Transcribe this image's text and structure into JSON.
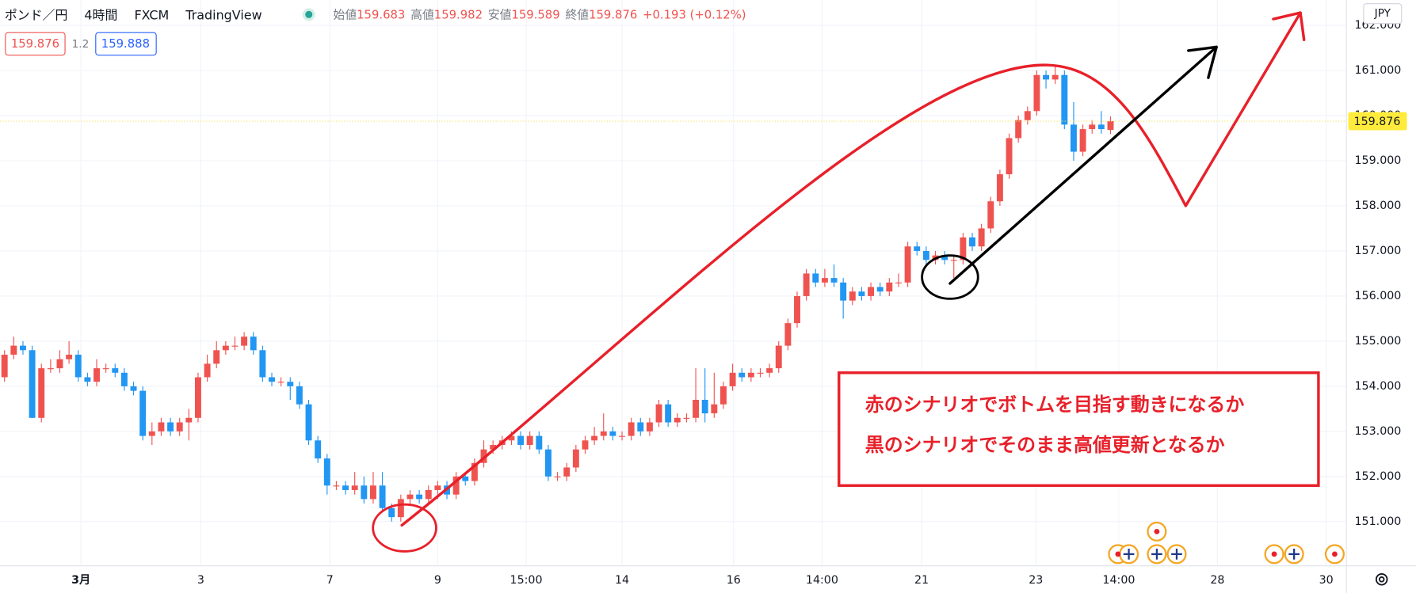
{
  "header": {
    "symbol": "ポンド／円",
    "interval": "4時間",
    "source": "FXCM",
    "platform": "TradingView",
    "ohlc": [
      {
        "label": "始値",
        "value": "159.683"
      },
      {
        "label": "高値",
        "value": "159.982"
      },
      {
        "label": "安値",
        "value": "159.589"
      },
      {
        "label": "終値",
        "value": "159.876"
      }
    ],
    "change": "+0.193 (+0.12%)",
    "bid": "159.876",
    "spread": "1.2",
    "ask": "159.888"
  },
  "chart_data": {
    "type": "candlestick",
    "up_color": "#ef5350",
    "down_color": "#2196f3",
    "open": [
      154.2,
      154.7,
      154.9,
      154.8,
      153.3,
      154.4,
      154.4,
      154.6,
      154.7,
      154.2,
      154.1,
      154.4,
      154.4,
      154.3,
      154.0,
      153.9,
      152.9,
      153.0,
      153.2,
      153.0,
      153.2,
      153.3,
      154.2,
      154.5,
      154.8,
      154.9,
      154.9,
      155.1,
      154.8,
      154.2,
      154.1,
      154.1,
      154.0,
      153.6,
      152.8,
      152.4,
      151.8,
      151.8,
      151.7,
      151.8,
      151.5,
      151.8,
      151.3,
      151.1,
      151.5,
      151.6,
      151.5,
      151.7,
      151.8,
      151.6,
      152.0,
      151.9,
      152.3,
      152.6,
      152.7,
      152.8,
      152.9,
      152.7,
      152.9,
      152.6,
      152.0,
      152.0,
      152.2,
      152.6,
      152.8,
      152.9,
      153.0,
      152.9,
      152.9,
      153.2,
      153.0,
      153.2,
      153.6,
      153.2,
      153.3,
      153.3,
      153.7,
      153.4,
      153.6,
      154.0,
      154.3,
      154.2,
      154.3,
      154.3,
      154.4,
      154.9,
      155.4,
      156.0,
      156.5,
      156.3,
      156.4,
      156.3,
      155.9,
      156.1,
      156.0,
      156.2,
      156.1,
      156.3,
      156.3,
      157.1,
      157.0,
      156.8,
      156.9,
      156.8,
      156.8,
      157.3,
      157.1,
      157.5,
      158.1,
      158.7,
      159.5,
      159.9,
      160.1,
      160.9,
      160.8,
      160.9,
      159.8,
      159.2,
      159.7,
      159.8,
      159.683
    ],
    "high": [
      154.8,
      155.1,
      155.0,
      154.9,
      154.5,
      154.6,
      154.8,
      155.0,
      154.8,
      154.3,
      154.6,
      154.5,
      154.5,
      154.4,
      154.1,
      154.0,
      153.2,
      153.3,
      153.3,
      153.3,
      153.5,
      154.3,
      154.7,
      155.0,
      155.0,
      155.1,
      155.2,
      155.2,
      154.9,
      154.3,
      154.2,
      154.2,
      154.1,
      153.7,
      152.9,
      152.5,
      151.9,
      151.9,
      152.1,
      152.0,
      152.1,
      152.1,
      151.4,
      151.6,
      151.7,
      151.7,
      151.8,
      151.9,
      151.9,
      152.1,
      152.1,
      152.4,
      152.8,
      152.8,
      152.9,
      153.0,
      153.0,
      153.0,
      153.0,
      152.7,
      152.1,
      152.3,
      152.7,
      152.9,
      153.1,
      153.4,
      153.1,
      153.0,
      153.3,
      153.3,
      153.3,
      153.7,
      153.7,
      153.4,
      153.4,
      154.4,
      154.4,
      154.3,
      154.1,
      154.5,
      154.4,
      154.4,
      154.4,
      154.5,
      155.0,
      155.5,
      156.1,
      156.6,
      156.6,
      156.6,
      156.7,
      156.4,
      156.2,
      156.2,
      156.3,
      156.3,
      156.4,
      156.5,
      157.2,
      157.2,
      157.1,
      157.0,
      157.0,
      156.9,
      157.4,
      157.4,
      157.6,
      158.2,
      158.8,
      159.6,
      160.0,
      160.2,
      161.0,
      161.0,
      161.1,
      161.0,
      160.3,
      159.8,
      159.9,
      160.1,
      159.982
    ],
    "low": [
      154.1,
      154.6,
      154.7,
      153.3,
      153.2,
      154.3,
      154.3,
      154.5,
      154.1,
      154.0,
      154.0,
      154.3,
      154.2,
      153.9,
      153.8,
      152.8,
      152.7,
      152.9,
      152.9,
      152.9,
      152.8,
      153.2,
      154.1,
      154.4,
      154.7,
      154.8,
      154.8,
      154.7,
      154.1,
      154.0,
      154.0,
      153.7,
      153.5,
      152.7,
      152.3,
      151.6,
      151.7,
      151.6,
      151.6,
      151.4,
      151.4,
      151.2,
      151.0,
      151.0,
      151.4,
      151.4,
      151.4,
      151.5,
      151.5,
      151.5,
      151.8,
      151.8,
      152.2,
      152.5,
      152.6,
      152.7,
      152.6,
      152.6,
      152.5,
      151.9,
      151.9,
      151.9,
      152.1,
      152.5,
      152.7,
      152.8,
      152.8,
      152.8,
      152.8,
      152.9,
      152.9,
      153.1,
      153.1,
      153.1,
      153.2,
      153.2,
      153.2,
      153.3,
      153.5,
      153.9,
      154.1,
      154.1,
      154.2,
      154.2,
      154.3,
      154.8,
      155.3,
      155.9,
      156.2,
      156.2,
      156.2,
      155.5,
      155.8,
      155.9,
      155.9,
      156.0,
      156.0,
      156.2,
      156.2,
      156.9,
      156.7,
      156.7,
      156.7,
      156.4,
      156.7,
      157.0,
      157.0,
      157.4,
      158.0,
      158.6,
      159.4,
      159.8,
      160.0,
      160.6,
      160.7,
      159.7,
      159.0,
      159.1,
      159.6,
      159.6,
      159.589
    ],
    "close": [
      154.7,
      154.9,
      154.8,
      153.3,
      154.4,
      154.4,
      154.6,
      154.7,
      154.2,
      154.1,
      154.4,
      154.4,
      154.3,
      154.0,
      153.9,
      152.9,
      153.0,
      153.2,
      153.0,
      153.2,
      153.3,
      154.2,
      154.5,
      154.8,
      154.9,
      154.9,
      155.1,
      154.8,
      154.2,
      154.1,
      154.1,
      154.0,
      153.6,
      152.8,
      152.4,
      151.8,
      151.8,
      151.7,
      151.8,
      151.5,
      151.8,
      151.3,
      151.1,
      151.5,
      151.6,
      151.5,
      151.7,
      151.8,
      151.6,
      152.0,
      151.9,
      152.3,
      152.6,
      152.7,
      152.8,
      152.9,
      152.7,
      152.9,
      152.6,
      152.0,
      152.0,
      152.2,
      152.6,
      152.8,
      152.9,
      153.0,
      152.9,
      152.9,
      153.2,
      153.0,
      153.2,
      153.6,
      153.2,
      153.3,
      153.3,
      153.7,
      153.4,
      153.6,
      154.0,
      154.3,
      154.2,
      154.3,
      154.3,
      154.4,
      154.9,
      155.4,
      156.0,
      156.5,
      156.3,
      156.4,
      156.3,
      155.9,
      156.1,
      156.0,
      156.2,
      156.1,
      156.3,
      156.3,
      157.1,
      157.0,
      156.8,
      156.9,
      156.8,
      156.8,
      157.3,
      157.1,
      157.5,
      158.1,
      158.7,
      159.5,
      159.9,
      160.1,
      160.9,
      160.8,
      160.9,
      159.8,
      159.2,
      159.7,
      159.8,
      159.7,
      159.876
    ],
    "ylim": [
      150.02,
      162.56
    ],
    "yticks": [
      {
        "value": 151,
        "label": "151.000"
      },
      {
        "value": 152,
        "label": "152.000"
      },
      {
        "value": 153,
        "label": "153.000"
      },
      {
        "value": 154,
        "label": "154.000"
      },
      {
        "value": 155,
        "label": "155.000"
      },
      {
        "value": 156,
        "label": "156.000"
      },
      {
        "value": 157,
        "label": "157.000"
      },
      {
        "value": 158,
        "label": "158.000"
      },
      {
        "value": 159,
        "label": "159.000"
      },
      {
        "value": 160,
        "label": "160.000"
      },
      {
        "value": 161,
        "label": "161.000"
      },
      {
        "value": 162,
        "label": "162.000"
      }
    ],
    "xlim": [
      -0.49,
      145.6
    ],
    "xticks": [
      {
        "value": 8.3,
        "label": "3月"
      },
      {
        "value": 21.3,
        "label": "3"
      },
      {
        "value": 35.3,
        "label": "7"
      },
      {
        "value": 47,
        "label": "9"
      },
      {
        "value": 56.6,
        "label": "15:00"
      },
      {
        "value": 67,
        "label": "14"
      },
      {
        "value": 79.1,
        "label": "16"
      },
      {
        "value": 88.7,
        "label": "14:00"
      },
      {
        "value": 99.5,
        "label": "21"
      },
      {
        "value": 111.9,
        "label": "23"
      },
      {
        "value": 120.9,
        "label": "14:00"
      },
      {
        "value": 131.6,
        "label": "28"
      },
      {
        "value": 143.4,
        "label": "30"
      }
    ],
    "grid": true,
    "last_price": {
      "value": 159.876,
      "label": "159.876"
    },
    "currency": "JPY",
    "annotations": [
      "赤のシナリオでボトムを目指す動きになるか",
      "黒のシナリオでそのまま高値更新となるか"
    ]
  }
}
